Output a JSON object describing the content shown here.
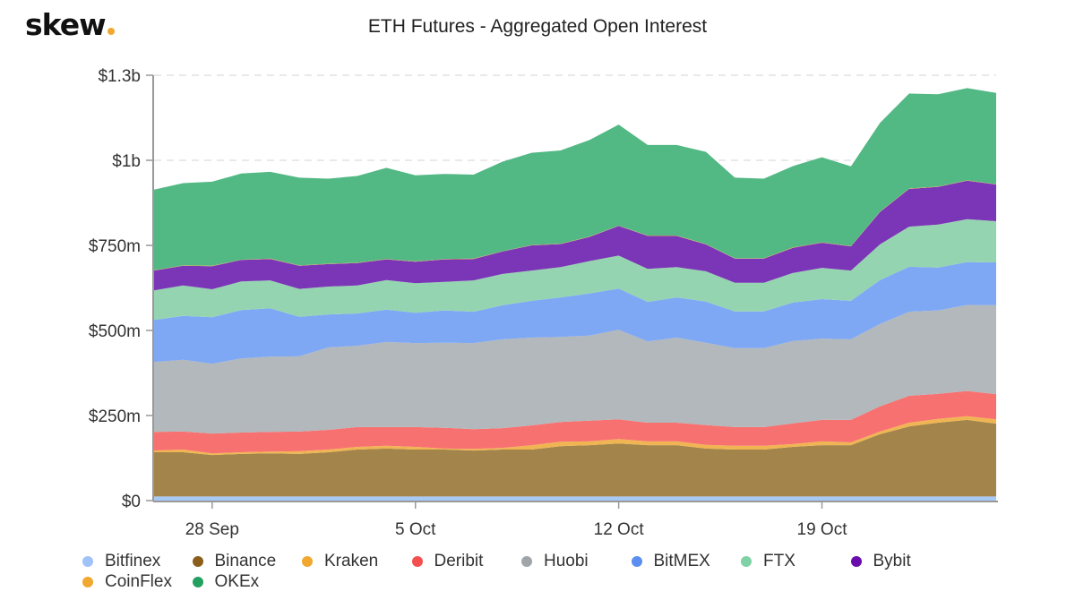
{
  "logo": {
    "text": "skew",
    "dot_color": "#f0a830"
  },
  "chart_data": {
    "type": "area",
    "stacked": true,
    "title": "ETH Futures - Aggregated Open Interest",
    "xlabel": "",
    "ylabel": "",
    "unit": "USD millions",
    "ylim": [
      0,
      1250
    ],
    "yticks": [
      {
        "value": 0,
        "label": "$0"
      },
      {
        "value": 250,
        "label": "$250m"
      },
      {
        "value": 500,
        "label": "$500m"
      },
      {
        "value": 750,
        "label": "$750m"
      },
      {
        "value": 1000,
        "label": "$1b"
      },
      {
        "value": 1250,
        "label": "$1.3b"
      }
    ],
    "xticks": [
      {
        "date": "2020-09-28",
        "label": "28 Sep"
      },
      {
        "date": "2020-10-05",
        "label": "5 Oct"
      },
      {
        "date": "2020-10-12",
        "label": "12 Oct"
      },
      {
        "date": "2020-10-19",
        "label": "19 Oct"
      }
    ],
    "grid": "horizontal-dashed",
    "legend_placement": "bottom-left",
    "x": [
      "2020-09-26",
      "2020-09-27",
      "2020-09-28",
      "2020-09-29",
      "2020-09-30",
      "2020-10-01",
      "2020-10-02",
      "2020-10-03",
      "2020-10-04",
      "2020-10-05",
      "2020-10-06",
      "2020-10-07",
      "2020-10-08",
      "2020-10-09",
      "2020-10-10",
      "2020-10-11",
      "2020-10-12",
      "2020-10-13",
      "2020-10-14",
      "2020-10-15",
      "2020-10-16",
      "2020-10-17",
      "2020-10-18",
      "2020-10-19",
      "2020-10-20",
      "2020-10-21",
      "2020-10-22",
      "2020-10-23",
      "2020-10-24",
      "2020-10-25"
    ],
    "series": [
      {
        "name": "Bitfinex",
        "color": "#a9c9f5",
        "legend_color": "#9fc2f8",
        "values": [
          12,
          12,
          12,
          12,
          12,
          12,
          12,
          12,
          12,
          12,
          12,
          12,
          12,
          12,
          12,
          12,
          12,
          12,
          12,
          12,
          12,
          12,
          12,
          12,
          12,
          12,
          12,
          12,
          12,
          12
        ]
      },
      {
        "name": "Binance",
        "color": "#a3844a",
        "legend_color": "#8b5e1a",
        "values": [
          130,
          130,
          122,
          125,
          127,
          125,
          130,
          138,
          141,
          138,
          138,
          135,
          138,
          138,
          148,
          151,
          156,
          151,
          151,
          141,
          138,
          138,
          146,
          151,
          151,
          183,
          206,
          217,
          225,
          214
        ]
      },
      {
        "name": "Kraken",
        "color": "#f0b552",
        "legend_color": "#f0a830",
        "values": [
          5,
          8,
          5,
          5,
          5,
          8,
          8,
          8,
          8,
          8,
          3,
          5,
          5,
          13,
          13,
          11,
          13,
          11,
          11,
          11,
          11,
          11,
          8,
          11,
          8,
          8,
          11,
          11,
          11,
          13
        ]
      },
      {
        "name": "Deribit",
        "color": "#f87171",
        "legend_color": "#f44e4e",
        "values": [
          55,
          53,
          58,
          58,
          58,
          58,
          58,
          58,
          55,
          58,
          61,
          58,
          58,
          58,
          58,
          61,
          58,
          55,
          55,
          58,
          55,
          55,
          61,
          63,
          66,
          74,
          79,
          74,
          74,
          74
        ]
      },
      {
        "name": "Huobi",
        "color": "#b2b8bb",
        "legend_color": "#a0a5aa",
        "values": [
          205,
          211,
          205,
          218,
          221,
          221,
          242,
          239,
          250,
          247,
          250,
          253,
          261,
          258,
          250,
          250,
          263,
          239,
          250,
          242,
          232,
          232,
          242,
          239,
          237,
          242,
          247,
          245,
          253,
          261
        ]
      },
      {
        "name": "BitMEX",
        "color": "#7fa8f4",
        "legend_color": "#5b8ef0",
        "values": [
          124,
          129,
          137,
          142,
          142,
          116,
          97,
          95,
          95,
          89,
          95,
          92,
          100,
          108,
          116,
          124,
          121,
          116,
          118,
          121,
          108,
          108,
          113,
          116,
          113,
          129,
          132,
          126,
          126,
          126
        ]
      },
      {
        "name": "FTX",
        "color": "#95d4b0",
        "legend_color": "#7fd1a6",
        "values": [
          87,
          89,
          82,
          84,
          82,
          82,
          82,
          82,
          87,
          87,
          84,
          92,
          92,
          89,
          89,
          95,
          97,
          97,
          89,
          89,
          84,
          84,
          87,
          92,
          89,
          105,
          118,
          126,
          126,
          121
        ]
      },
      {
        "name": "Bybit",
        "color": "#7b35b7",
        "legend_color": "#6a0dad",
        "values": [
          58,
          58,
          68,
          63,
          63,
          68,
          66,
          66,
          61,
          63,
          66,
          63,
          66,
          74,
          68,
          71,
          87,
          97,
          92,
          79,
          71,
          71,
          74,
          74,
          71,
          95,
          111,
          111,
          113,
          108
        ]
      },
      {
        "name": "CoinFlex",
        "color": "#f0a830",
        "legend_color": "#f0a830",
        "values": [
          1,
          1,
          1,
          1,
          1,
          1,
          1,
          1,
          1,
          1,
          1,
          1,
          1,
          1,
          1,
          1,
          1,
          1,
          1,
          1,
          1,
          1,
          1,
          1,
          1,
          1,
          1,
          1,
          1,
          1
        ]
      },
      {
        "name": "OKEx",
        "color": "#52b884",
        "legend_color": "#22a060",
        "values": [
          237,
          242,
          247,
          253,
          255,
          258,
          250,
          255,
          268,
          253,
          250,
          247,
          263,
          271,
          274,
          284,
          297,
          266,
          266,
          271,
          237,
          234,
          239,
          250,
          234,
          261,
          279,
          271,
          271,
          268
        ]
      }
    ]
  }
}
